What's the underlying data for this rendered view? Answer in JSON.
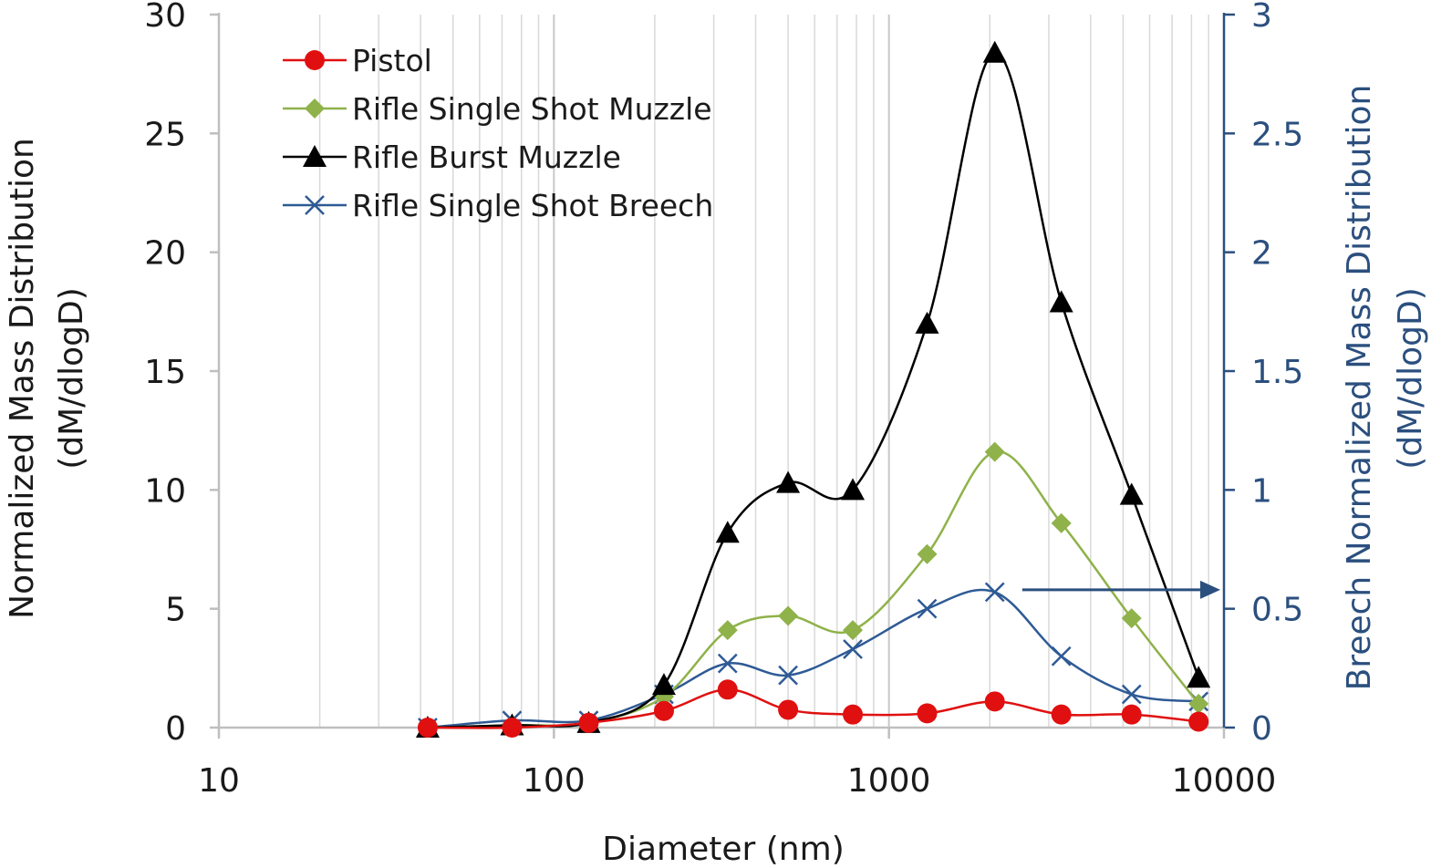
{
  "colors": {
    "pistol": "#e01010",
    "rifle_single_muzzle": "#8fb24a",
    "rifle_burst_muzzle": "#000000",
    "rifle_single_breech": "#2e5a95",
    "right_axis": "#2b4f7e",
    "grid": "#d9d9d9"
  },
  "chart_data": {
    "type": "line",
    "x_scale": "log",
    "xlabel": "Diameter (nm)",
    "ylabel_left": [
      "Normalized Mass Distribution",
      "(dM/dlogD)"
    ],
    "ylabel_right": [
      "Breech Normalized Mass Distribution",
      "(dM/dlogD)"
    ],
    "xlim": [
      10,
      10000
    ],
    "ylim_left": [
      0,
      30
    ],
    "ylim_right": [
      0,
      3
    ],
    "x_ticks": [
      10,
      100,
      1000,
      10000
    ],
    "x_tick_labels": [
      "10",
      "100",
      "1000",
      "10000"
    ],
    "y_ticks_left": [
      0,
      5,
      10,
      15,
      20,
      25,
      30
    ],
    "y_tick_labels_left": [
      "0",
      "5",
      "10",
      "15",
      "20",
      "25",
      "30"
    ],
    "y_ticks_right": [
      0,
      0.5,
      1,
      1.5,
      2,
      2.5,
      3
    ],
    "y_tick_labels_right": [
      "0",
      "0.5",
      "1",
      "1.5",
      "2",
      "2.5",
      "3"
    ],
    "grid": "vertical minor log gridlines",
    "legend_position": "top-left",
    "x": [
      42,
      75,
      127,
      213,
      330,
      500,
      780,
      1300,
      2070,
      3270,
      5300,
      8400
    ],
    "series": [
      {
        "name": "Pistol",
        "axis": "left",
        "marker": "circle",
        "values": [
          0.0,
          0.0,
          0.2,
          0.7,
          1.6,
          0.75,
          0.55,
          0.6,
          1.1,
          0.55,
          0.55,
          0.25
        ]
      },
      {
        "name": "Rifle Single Shot Muzzle",
        "axis": "left",
        "marker": "diamond",
        "values": [
          0.0,
          0.1,
          0.2,
          1.3,
          4.1,
          4.7,
          4.1,
          7.3,
          11.6,
          8.6,
          4.6,
          1.0
        ]
      },
      {
        "name": "Rifle Burst Muzzle",
        "axis": "left",
        "marker": "triangle",
        "values": [
          0.0,
          0.1,
          0.2,
          1.8,
          8.2,
          10.3,
          10.0,
          17.0,
          28.4,
          17.9,
          9.8,
          2.1
        ]
      },
      {
        "name": "Rifle Single Shot Breech",
        "axis": "right",
        "marker": "x",
        "values": [
          0.0,
          0.03,
          0.03,
          0.14,
          0.27,
          0.22,
          0.33,
          0.5,
          0.57,
          0.3,
          0.14,
          0.11
        ]
      }
    ],
    "annotation": {
      "type": "arrow",
      "direction": "right",
      "meaning": "breech series refers to right axis",
      "from_x": 2500,
      "to_x": 10000,
      "y_left": 5.8
    }
  }
}
